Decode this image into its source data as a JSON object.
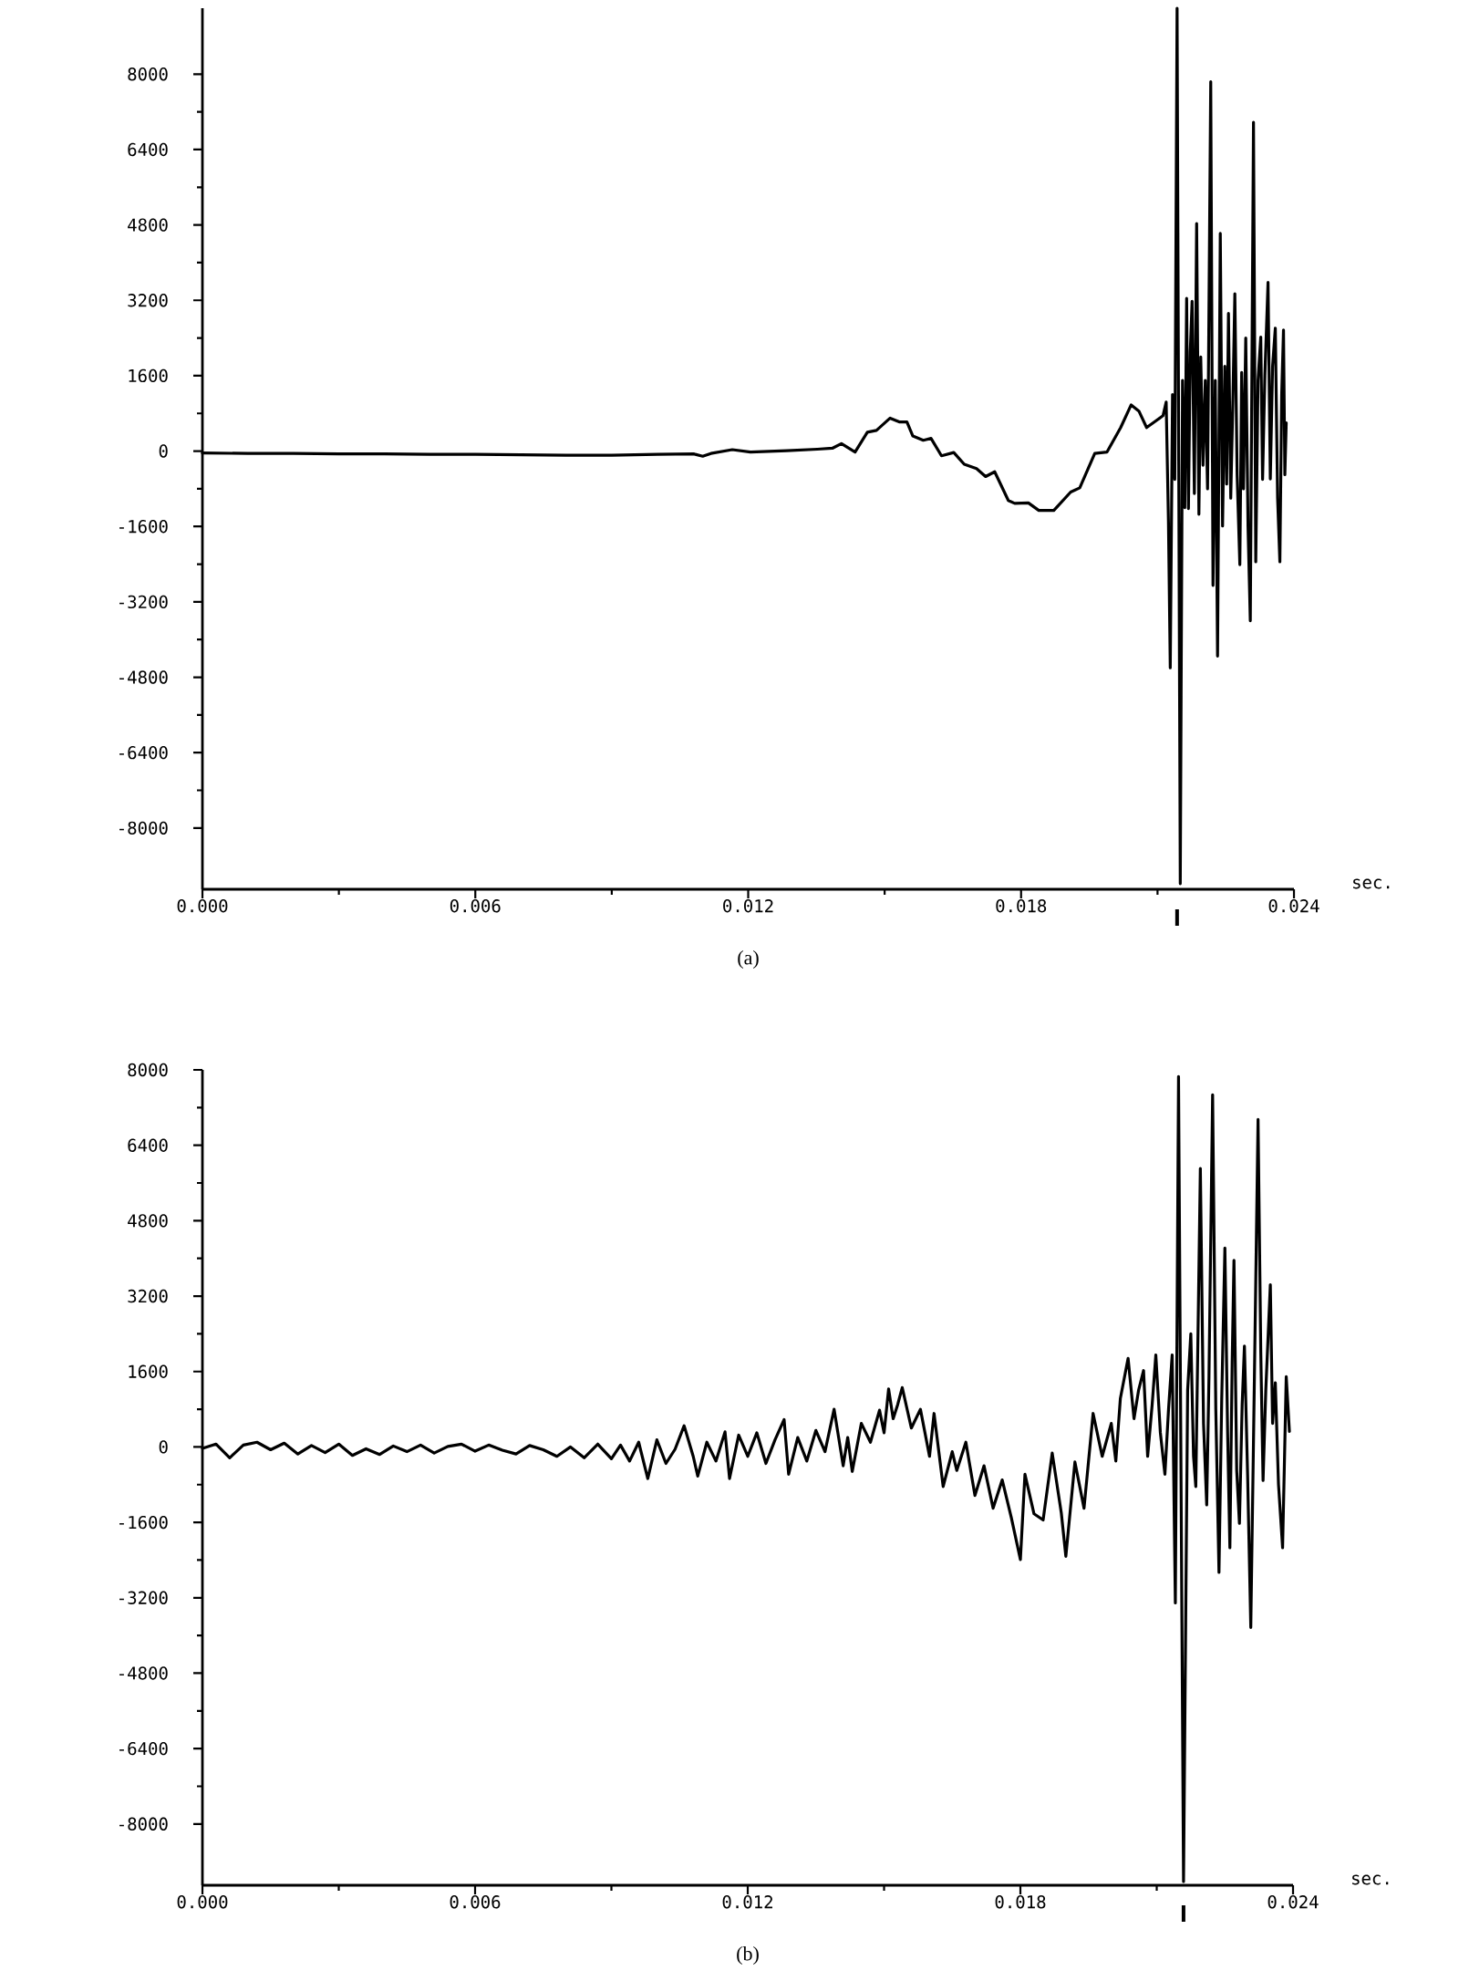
{
  "chart_data": [
    {
      "type": "line",
      "color": "#000000",
      "xlabel": "sec.",
      "annotations": [
        "(a)"
      ],
      "xlim": [
        0,
        0.024
      ],
      "ylim": [
        -9300,
        9400
      ],
      "xticks": [
        {
          "value": 0,
          "label": "0.000"
        },
        {
          "value": 0.003,
          "label": null
        },
        0.006,
        {
          "value": 0.009,
          "label": null
        },
        0.012,
        {
          "value": 0.015,
          "label": null
        },
        0.018,
        {
          "value": 0.021,
          "label": null
        },
        0.024
      ],
      "yticks": [
        -8000,
        {
          "value": -7200,
          "label": null
        },
        -6400,
        {
          "value": -5600,
          "label": null
        },
        -4800,
        {
          "value": -4000,
          "label": null
        },
        -3200,
        {
          "value": -2400,
          "label": null
        },
        -1600,
        {
          "value": -800,
          "label": null
        },
        0,
        {
          "value": 800,
          "label": null
        },
        1600,
        {
          "value": 2400,
          "label": null
        },
        3200,
        {
          "value": 4000,
          "label": null
        },
        4800,
        {
          "value": 5600,
          "label": null
        },
        6400,
        {
          "value": 7200,
          "label": null
        },
        8000
      ],
      "x": [
        0,
        0.001,
        0.002,
        0.003,
        0.004,
        0.005,
        0.006,
        0.007,
        0.008,
        0.009,
        0.01,
        0.0108,
        0.011,
        0.01118,
        0.01165,
        0.01205,
        0.01285,
        0.01352,
        0.01385,
        0.01405,
        0.01435,
        0.01462,
        0.01482,
        0.01512,
        0.01532,
        0.01549,
        0.01562,
        0.01585,
        0.01602,
        0.01625,
        0.01652,
        0.01675,
        0.01702,
        0.01722,
        0.01742,
        0.01772,
        0.01786,
        0.01816,
        0.01839,
        0.01872,
        0.01909,
        0.01929,
        0.01962,
        0.01989,
        0.02019,
        0.02042,
        0.02059,
        0.02076,
        0.02099,
        0.02112,
        0.02119,
        0.02124,
        0.02128,
        0.02133,
        0.02138,
        0.02143,
        0.0215,
        0.02155,
        0.0216,
        0.02164,
        0.02168,
        0.02172,
        0.02176,
        0.02181,
        0.02186,
        0.02191,
        0.02195,
        0.022,
        0.02205,
        0.0221,
        0.02217,
        0.02222,
        0.02227,
        0.02232,
        0.02238,
        0.02243,
        0.02248,
        0.02252,
        0.02256,
        0.02261,
        0.02266,
        0.0227,
        0.02275,
        0.02281,
        0.02285,
        0.02289,
        0.02294,
        0.02299,
        0.02304,
        0.02311,
        0.02316,
        0.02321,
        0.02327,
        0.02331,
        0.02336,
        0.02343,
        0.02348,
        0.02353,
        0.02359,
        0.02364,
        0.02369,
        0.02373,
        0.02377,
        0.0238,
        0.02383
      ],
      "values": [
        -40,
        -50,
        -50,
        -60,
        -60,
        -70,
        -70,
        -80,
        -90,
        -90,
        -70,
        -60,
        -110,
        -50,
        30,
        -20,
        10,
        40,
        60,
        160,
        -20,
        400,
        440,
        700,
        620,
        620,
        320,
        230,
        270,
        -100,
        -30,
        -280,
        -370,
        -540,
        -440,
        -1050,
        -1110,
        -1100,
        -1260,
        -1260,
        -870,
        -780,
        -50,
        -20,
        500,
        980,
        850,
        500,
        660,
        750,
        1040,
        -1500,
        -4600,
        1200,
        -600,
        9400,
        -9180,
        1500,
        -1200,
        3240,
        -1220,
        2100,
        3180,
        -900,
        4830,
        -1340,
        2000,
        -300,
        1500,
        -800,
        7840,
        -2850,
        1500,
        -4350,
        4620,
        -1590,
        1800,
        -700,
        2920,
        -1000,
        1200,
        3340,
        -500,
        -2410,
        1670,
        -800,
        2400,
        -1600,
        -3600,
        6980,
        -2350,
        1500,
        2420,
        -600,
        1600,
        3580,
        -590,
        1800,
        2610,
        -1000,
        -2350,
        1200,
        2570,
        -500,
        600
      ]
    },
    {
      "type": "line",
      "color": "#000000",
      "xlabel": "sec.",
      "annotations": [
        "(b)"
      ],
      "xlim": [
        0,
        0.024
      ],
      "ylim": [
        -9300,
        8000
      ],
      "xticks": [
        {
          "value": 0,
          "label": "0.000"
        },
        {
          "value": 0.003,
          "label": null
        },
        0.006,
        {
          "value": 0.009,
          "label": null
        },
        0.012,
        {
          "value": 0.015,
          "label": null
        },
        0.018,
        {
          "value": 0.021,
          "label": null
        },
        0.024
      ],
      "yticks": [
        -8000,
        {
          "value": -7200,
          "label": null
        },
        -6400,
        {
          "value": -5600,
          "label": null
        },
        -4800,
        {
          "value": -4000,
          "label": null
        },
        -3200,
        {
          "value": -2400,
          "label": null
        },
        -1600,
        {
          "value": -800,
          "label": null
        },
        0,
        {
          "value": 800,
          "label": null
        },
        1600,
        {
          "value": 2400,
          "label": null
        },
        3200,
        {
          "value": 4000,
          "label": null
        },
        4800,
        {
          "value": 5600,
          "label": null
        },
        6400,
        {
          "value": 7200,
          "label": null
        },
        8000
      ],
      "x": [
        0,
        0.0003,
        0.0006,
        0.0009,
        0.0012,
        0.0015,
        0.0018,
        0.0021,
        0.0024,
        0.0027,
        0.003,
        0.0033,
        0.0036,
        0.0039,
        0.0042,
        0.0045,
        0.0048,
        0.0051,
        0.0054,
        0.0057,
        0.006,
        0.0063,
        0.0066,
        0.0069,
        0.0072,
        0.0075,
        0.0078,
        0.0081,
        0.0084,
        0.0087,
        0.009,
        0.0092,
        0.0094,
        0.0096,
        0.0098,
        0.01,
        0.0102,
        0.0104,
        0.0106,
        0.0108,
        0.0109,
        0.0111,
        0.0113,
        0.0115,
        0.0116,
        0.0118,
        0.012,
        0.0122,
        0.0124,
        0.0126,
        0.0128,
        0.0129,
        0.0131,
        0.0133,
        0.0135,
        0.0137,
        0.0139,
        0.0141,
        0.0142,
        0.0143,
        0.0145,
        0.0147,
        0.0149,
        0.015,
        0.0151,
        0.0152,
        0.0153,
        0.0154,
        0.0156,
        0.0158,
        0.016,
        0.0161,
        0.0163,
        0.0165,
        0.0166,
        0.0168,
        0.017,
        0.0172,
        0.0174,
        0.0176,
        0.0178,
        0.018,
        0.0181,
        0.0183,
        0.0185,
        0.0187,
        0.0189,
        0.019,
        0.0192,
        0.0194,
        0.0196,
        0.0198,
        0.02,
        0.0201,
        0.0202,
        0.02037,
        0.0205,
        0.0206,
        0.02071,
        0.0208,
        0.0209,
        0.02098,
        0.02108,
        0.02118,
        0.02126,
        0.02134,
        0.02141,
        0.02148,
        0.02159,
        0.02168,
        0.02175,
        0.02181,
        0.02186,
        0.02196,
        0.02203,
        0.0221,
        0.02215,
        0.02223,
        0.0223,
        0.02237,
        0.02243,
        0.0225,
        0.02256,
        0.02261,
        0.02266,
        0.0227,
        0.02276,
        0.02282,
        0.02288,
        0.02293,
        0.023,
        0.02307,
        0.02315,
        0.02323,
        0.02329,
        0.02334,
        0.0234,
        0.0235,
        0.02355,
        0.02361,
        0.02368,
        0.02377,
        0.02385,
        0.02392
      ],
      "values": [
        -30,
        60,
        -230,
        40,
        100,
        -60,
        80,
        -150,
        30,
        -120,
        60,
        -180,
        -40,
        -160,
        20,
        -100,
        40,
        -130,
        10,
        60,
        -90,
        40,
        -70,
        -150,
        30,
        -60,
        -200,
        0,
        -230,
        60,
        -250,
        40,
        -300,
        100,
        -670,
        150,
        -350,
        -50,
        450,
        -200,
        -620,
        100,
        -300,
        320,
        -670,
        250,
        -200,
        300,
        -350,
        150,
        580,
        -580,
        200,
        -300,
        350,
        -100,
        800,
        -400,
        200,
        -520,
        500,
        100,
        780,
        300,
        1230,
        600,
        900,
        1260,
        400,
        800,
        -200,
        710,
        -840,
        -100,
        -500,
        100,
        -1030,
        -400,
        -1300,
        -700,
        -1500,
        -2390,
        -580,
        -1420,
        -1550,
        -130,
        -1400,
        -2320,
        -320,
        -1300,
        710,
        -200,
        500,
        -300,
        1030,
        1880,
        600,
        1200,
        1620,
        -200,
        900,
        1950,
        300,
        -580,
        800,
        1950,
        -3310,
        7860,
        -9220,
        1200,
        2400,
        -200,
        -840,
        5910,
        500,
        -1230,
        1500,
        7470,
        800,
        -2660,
        1000,
        4220,
        300,
        -2140,
        1800,
        3960,
        -500,
        -1620,
        900,
        2140,
        -600,
        -3830,
        1500,
        6950,
        2000,
        -710,
        1200,
        3440,
        500,
        1360,
        -800,
        -2140,
        1490,
        330
      ]
    }
  ]
}
